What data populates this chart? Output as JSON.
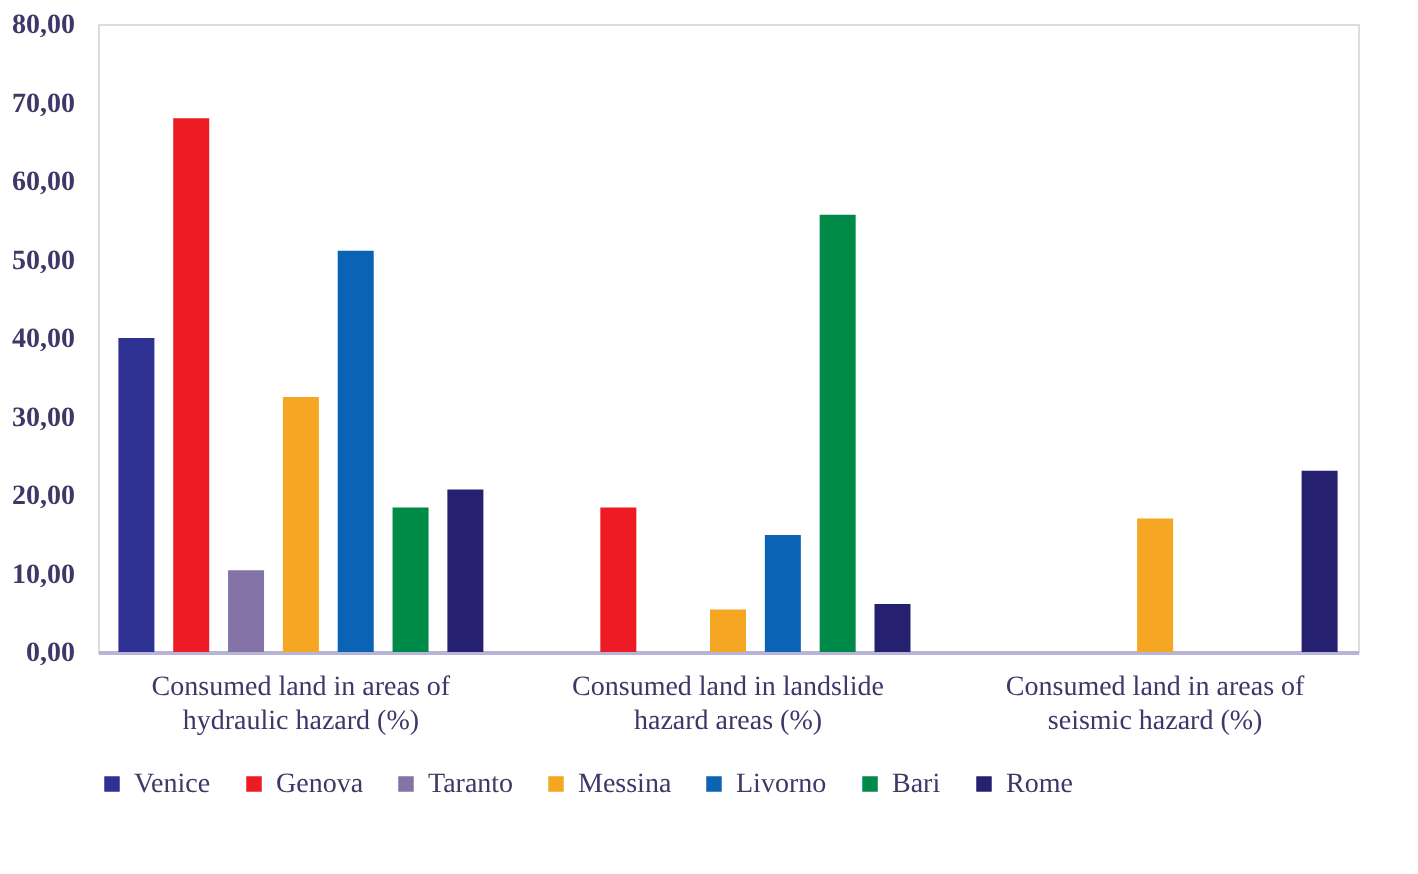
{
  "chart_data": {
    "type": "bar",
    "categories": [
      "Consumed land in areas of hydraulic hazard (%)",
      "Consumed land in landslide hazard areas (%)",
      "Consumed land in areas of seismic hazard (%)"
    ],
    "series": [
      {
        "name": "Venice",
        "color": "#2e3192",
        "values": [
          40.0,
          null,
          null
        ]
      },
      {
        "name": "Genova",
        "color": "#ed1c24",
        "values": [
          68.0,
          18.4,
          null
        ]
      },
      {
        "name": "Taranto",
        "color": "#8473a6",
        "values": [
          10.4,
          null,
          null
        ]
      },
      {
        "name": "Messina",
        "color": "#f5a623",
        "values": [
          32.5,
          5.4,
          17.0
        ]
      },
      {
        "name": "Livorno",
        "color": "#0b63b5",
        "values": [
          51.1,
          14.9,
          null
        ]
      },
      {
        "name": "Bari",
        "color": "#008a47",
        "values": [
          18.4,
          55.7,
          null
        ]
      },
      {
        "name": "Rome",
        "color": "#262070",
        "values": [
          20.7,
          6.1,
          23.1
        ]
      }
    ],
    "ylim": [
      0,
      80
    ],
    "yticks": [
      {
        "value": 0,
        "label": "0,00"
      },
      {
        "value": 10,
        "label": "10,00"
      },
      {
        "value": 20,
        "label": "20,00"
      },
      {
        "value": 30,
        "label": "30,00"
      },
      {
        "value": 40,
        "label": "40,00"
      },
      {
        "value": 50,
        "label": "50,00"
      },
      {
        "value": 60,
        "label": "60,00"
      },
      {
        "value": 70,
        "label": "70,00"
      },
      {
        "value": 80,
        "label": "80,00"
      }
    ],
    "grid": false,
    "legend": "bottom"
  }
}
